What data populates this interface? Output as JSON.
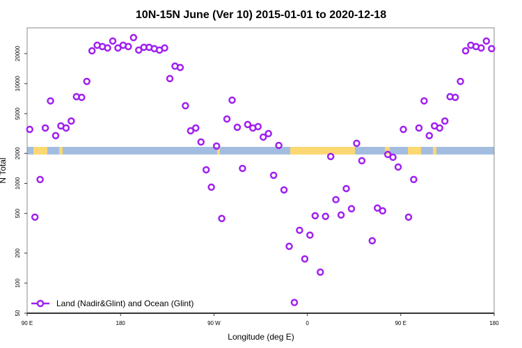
{
  "chart_data": {
    "type": "scatter",
    "title": "10N-15N June (Ver 10)   2015-01-01 to 2020-12-18",
    "x_label": "Longitude (deg E)",
    "y_label": "N Total",
    "log_y": true,
    "xlim": [
      90,
      540
    ],
    "xticks": [
      {
        "value": 90,
        "label": "90 E"
      },
      180,
      {
        "value": 270,
        "label": "90 W"
      },
      {
        "value": 360,
        "label": "0"
      },
      {
        "value": 450,
        "label": "90 E"
      },
      {
        "value": 540,
        "label": "180"
      }
    ],
    "ylim": [
      50,
      36200
    ],
    "yticks": [
      50,
      100,
      200,
      500,
      1000,
      2000,
      5000,
      10000,
      20000
    ],
    "legend": "bottom-left",
    "series": [
      {
        "name": "Land (Nadir&Glint) and Ocean (Glint)",
        "color": "#a020f0",
        "x": [
          92.5,
          97.5,
          102.5,
          107.5,
          112.5,
          117.5,
          122.5,
          127.5,
          132.5,
          137.5,
          142.5,
          147.5,
          152.5,
          157.5,
          162.5,
          167.5,
          172.5,
          177.5,
          182.5,
          187.5,
          192.5,
          197.5,
          202.5,
          207.5,
          212.5,
          217.5,
          222.5,
          227.5,
          232.5,
          237.5,
          242.5,
          247.5,
          252.5,
          257.5,
          262.5,
          267.5,
          272.5,
          277.5,
          282.5,
          287.5,
          292.5,
          297.5,
          302.5,
          307.5,
          312.5,
          317.5,
          322.5,
          327.5,
          332.5,
          337.5,
          342.5,
          347.5,
          352.5,
          357.5,
          362.5,
          367.5,
          372.5,
          377.5,
          382.5,
          387.5,
          392.5,
          397.5,
          402.5,
          407.5,
          412.5,
          422.5,
          427.5,
          432.5,
          437.5,
          442.5,
          447.5,
          452.5,
          457.5,
          462.5,
          467.5,
          472.5,
          477.5,
          482.5,
          487.5,
          492.5,
          497.5,
          502.5,
          507.5,
          512.5,
          517.5,
          522.5,
          527.5,
          532.5,
          537.5
        ],
        "values": [
          3475,
          459,
          1094,
          3590,
          6710,
          3010,
          3767,
          3590,
          4215,
          7390,
          7280,
          10520,
          21300,
          24240,
          23500,
          22750,
          26700,
          22750,
          24240,
          23500,
          28900,
          21670,
          23100,
          23100,
          22390,
          21670,
          22750,
          11220,
          14960,
          14500,
          6000,
          3365,
          3590,
          2600,
          1368,
          916,
          2365,
          445,
          4420,
          6820,
          3650,
          1413,
          3890,
          3590,
          3705,
          2910,
          3155,
          1205,
          2400,
          860,
          234,
          64,
          339,
          175,
          303,
          474,
          129,
          467,
          1858,
          687,
          482,
          887,
          557,
          2520,
          1687,
          266,
          566,
          531,
          1950,
          1828,
          1459,
          3475,
          459,
          1094,
          3590,
          6710,
          3010,
          3767,
          3590,
          4215,
          7390,
          7280,
          10520,
          21300,
          24240,
          23500,
          22750,
          26700,
          22390
        ]
      }
    ]
  }
}
